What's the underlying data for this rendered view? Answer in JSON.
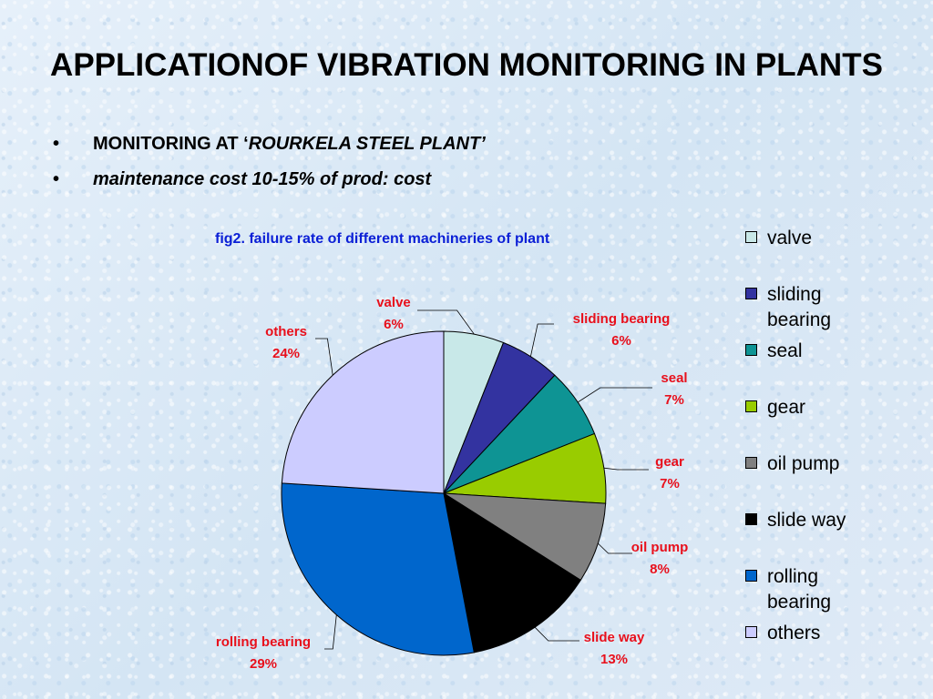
{
  "slide": {
    "title": "APPLICATIONOF VIBRATION MONITORING IN PLANTS",
    "bullets": [
      {
        "bullet": "•",
        "prefix": "MONITORING AT ‘",
        "emph": "ROURKELA STEEL PLANT’",
        "suffix": ""
      },
      {
        "bullet": "•",
        "prefix": "",
        "emph": "maintenance cost 10-15% of prod: cost",
        "suffix": ""
      }
    ]
  },
  "chart_data": {
    "type": "pie",
    "title": "fig2. failure rate of different machineries of plant",
    "legend_position": "right",
    "categories": [
      "valve",
      "sliding bearing",
      "seal",
      "gear",
      "oil pump",
      "slide way",
      "rolling bearing",
      "others"
    ],
    "values": [
      6,
      6,
      7,
      7,
      8,
      13,
      29,
      24
    ],
    "labels": [
      "6%",
      "6%",
      "7%",
      "7%",
      "8%",
      "13%",
      "29%",
      "24%"
    ],
    "colors": [
      "#c8e8e8",
      "#3333a0",
      "#0e9494",
      "#99cc00",
      "#808080",
      "#000000",
      "#0066cc",
      "#ccccff"
    ],
    "label_color": "#e8101c",
    "title_color": "#0b1fd6"
  }
}
